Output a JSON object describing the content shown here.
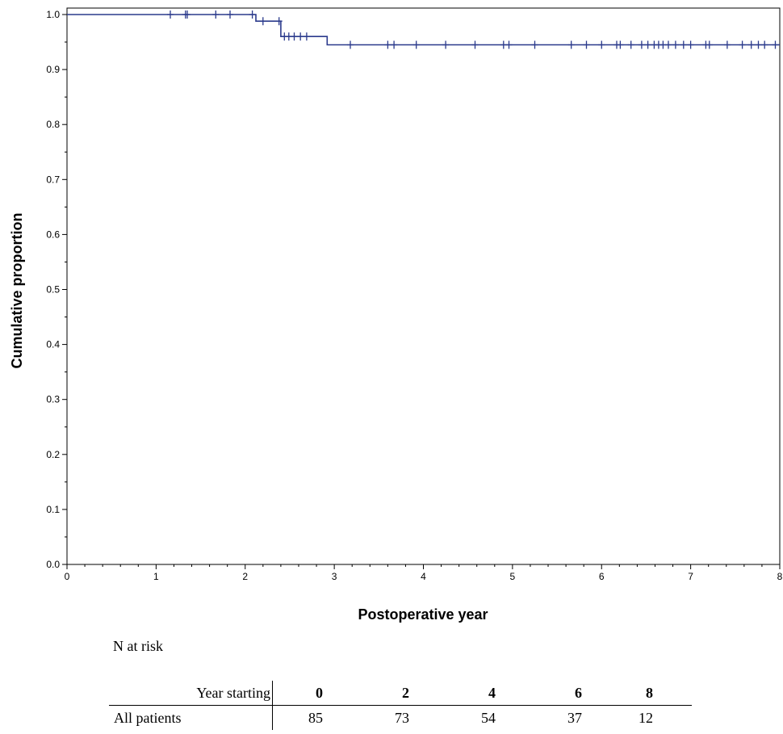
{
  "chart_data": {
    "type": "line",
    "xlabel": "Postoperative year",
    "ylabel": "Cumulative proportion",
    "xlim": [
      0,
      8
    ],
    "ylim": [
      0.0,
      1.0
    ],
    "x_ticks": [
      "0",
      "1",
      "2",
      "3",
      "4",
      "5",
      "6",
      "7",
      "8"
    ],
    "y_ticks": [
      "0.0",
      "0.1",
      "0.2",
      "0.3",
      "0.4",
      "0.5",
      "0.6",
      "0.7",
      "0.8",
      "0.9",
      "1.0"
    ],
    "grid": false,
    "line_color": "#2b3a8c",
    "series": [
      {
        "step_points": [
          [
            0,
            1.0
          ],
          [
            2.12,
            1.0
          ],
          [
            2.12,
            0.988
          ],
          [
            2.4,
            0.988
          ],
          [
            2.4,
            0.96
          ],
          [
            2.92,
            0.96
          ],
          [
            2.92,
            0.945
          ],
          [
            8,
            0.945
          ]
        ],
        "censor_marks": [
          [
            1.16,
            1.0
          ],
          [
            1.33,
            1.0
          ],
          [
            1.35,
            1.0
          ],
          [
            1.67,
            1.0
          ],
          [
            1.83,
            1.0
          ],
          [
            2.08,
            1.0
          ],
          [
            2.2,
            0.988
          ],
          [
            2.38,
            0.988
          ],
          [
            2.44,
            0.96
          ],
          [
            2.49,
            0.96
          ],
          [
            2.55,
            0.96
          ],
          [
            2.62,
            0.96
          ],
          [
            2.69,
            0.96
          ],
          [
            3.18,
            0.945
          ],
          [
            3.6,
            0.945
          ],
          [
            3.67,
            0.945
          ],
          [
            3.92,
            0.945
          ],
          [
            4.25,
            0.945
          ],
          [
            4.58,
            0.945
          ],
          [
            4.9,
            0.945
          ],
          [
            4.96,
            0.945
          ],
          [
            5.25,
            0.945
          ],
          [
            5.66,
            0.945
          ],
          [
            5.83,
            0.945
          ],
          [
            6.0,
            0.945
          ],
          [
            6.17,
            0.945
          ],
          [
            6.21,
            0.945
          ],
          [
            6.33,
            0.945
          ],
          [
            6.45,
            0.945
          ],
          [
            6.52,
            0.945
          ],
          [
            6.59,
            0.945
          ],
          [
            6.64,
            0.945
          ],
          [
            6.69,
            0.945
          ],
          [
            6.75,
            0.945
          ],
          [
            6.83,
            0.945
          ],
          [
            6.92,
            0.945
          ],
          [
            7.0,
            0.945
          ],
          [
            7.17,
            0.945
          ],
          [
            7.21,
            0.945
          ],
          [
            7.41,
            0.945
          ],
          [
            7.58,
            0.945
          ],
          [
            7.68,
            0.945
          ],
          [
            7.76,
            0.945
          ],
          [
            7.83,
            0.945
          ],
          [
            7.95,
            0.945
          ]
        ]
      }
    ]
  },
  "risk_table": {
    "title": "N at risk",
    "header_label": "Year starting",
    "years": [
      "0",
      "2",
      "4",
      "6",
      "8"
    ],
    "row_label": "All patients",
    "counts": [
      "85",
      "73",
      "54",
      "37",
      "12"
    ]
  }
}
